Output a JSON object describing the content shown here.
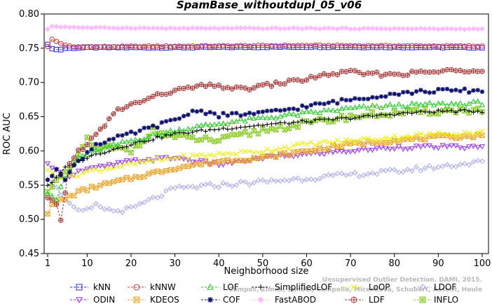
{
  "chart_data": {
    "type": "line",
    "title": "SpamBase_withoutdupl_05_v06",
    "xlabel": "Neighborhood size",
    "ylabel": "ROC AUC",
    "xlim": [
      1,
      100
    ],
    "ylim": [
      0.45,
      0.8
    ],
    "x_ticks": [
      "1",
      "10",
      "20",
      "30",
      "40",
      "50",
      "60",
      "70",
      "80",
      "90",
      "100"
    ],
    "y_ticks": [
      "0.45",
      "0.50",
      "0.55",
      "0.60",
      "0.65",
      "0.70",
      "0.75",
      "0.80"
    ],
    "grid": false,
    "legend_position": "bottom",
    "watermark": [
      "Campos, Zimek, Sander, Campello, Micenkova, Schubert, Assent, Houle",
      "Unsupervised Outlier Detection. DAMI, 2015."
    ],
    "series": [
      {
        "name": "kNN",
        "color": "#2323ff",
        "marker": "square",
        "keypoints": [
          [
            1,
            0.755
          ],
          [
            2,
            0.75
          ],
          [
            3,
            0.748
          ],
          [
            4,
            0.748
          ],
          [
            5,
            0.75
          ],
          [
            10,
            0.751
          ],
          [
            30,
            0.751
          ],
          [
            60,
            0.752
          ],
          [
            100,
            0.751
          ]
        ]
      },
      {
        "name": "kNNW",
        "color": "#e03030",
        "marker": "circle",
        "keypoints": [
          [
            1,
            0.752
          ],
          [
            2,
            0.763
          ],
          [
            3,
            0.76
          ],
          [
            4,
            0.757
          ],
          [
            5,
            0.754
          ],
          [
            7,
            0.752
          ],
          [
            10,
            0.752
          ],
          [
            30,
            0.753
          ],
          [
            60,
            0.754
          ],
          [
            100,
            0.753
          ]
        ]
      },
      {
        "name": "LOF",
        "color": "#22cc22",
        "marker": "triangle-up",
        "keypoints": [
          [
            1,
            0.54
          ],
          [
            3,
            0.53
          ],
          [
            5,
            0.56
          ],
          [
            8,
            0.59
          ],
          [
            12,
            0.6
          ],
          [
            20,
            0.615
          ],
          [
            30,
            0.63
          ],
          [
            40,
            0.64
          ],
          [
            50,
            0.648
          ],
          [
            60,
            0.655
          ],
          [
            70,
            0.662
          ],
          [
            80,
            0.666
          ],
          [
            90,
            0.668
          ],
          [
            100,
            0.67
          ]
        ]
      },
      {
        "name": "SimplifiedLOF",
        "color": "#000000",
        "marker": "plus",
        "keypoints": [
          [
            1,
            0.55
          ],
          [
            3,
            0.56
          ],
          [
            5,
            0.575
          ],
          [
            8,
            0.585
          ],
          [
            12,
            0.595
          ],
          [
            20,
            0.61
          ],
          [
            30,
            0.625
          ],
          [
            40,
            0.632
          ],
          [
            50,
            0.638
          ],
          [
            60,
            0.643
          ],
          [
            70,
            0.648
          ],
          [
            80,
            0.654
          ],
          [
            90,
            0.658
          ],
          [
            100,
            0.658
          ]
        ]
      },
      {
        "name": "LoOP",
        "color": "#eeee00",
        "marker": "x",
        "keypoints": [
          [
            1,
            0.57
          ],
          [
            3,
            0.565
          ],
          [
            5,
            0.56
          ],
          [
            10,
            0.57
          ],
          [
            20,
            0.58
          ],
          [
            30,
            0.59
          ],
          [
            40,
            0.595
          ],
          [
            50,
            0.6
          ],
          [
            60,
            0.61
          ],
          [
            70,
            0.615
          ],
          [
            80,
            0.62
          ],
          [
            90,
            0.625
          ],
          [
            100,
            0.627
          ]
        ]
      },
      {
        "name": "LDOF",
        "color": "#aaaaee",
        "marker": "diamond",
        "keypoints": [
          [
            1,
            0.56
          ],
          [
            3,
            0.545
          ],
          [
            5,
            0.53
          ],
          [
            7,
            0.515
          ],
          [
            9,
            0.51
          ],
          [
            12,
            0.52
          ],
          [
            16,
            0.512
          ],
          [
            20,
            0.515
          ],
          [
            25,
            0.53
          ],
          [
            30,
            0.545
          ],
          [
            40,
            0.55
          ],
          [
            50,
            0.555
          ],
          [
            60,
            0.56
          ],
          [
            70,
            0.565
          ],
          [
            80,
            0.57
          ],
          [
            90,
            0.577
          ],
          [
            100,
            0.584
          ]
        ]
      },
      {
        "name": "ODIN",
        "color": "#9933ee",
        "marker": "triangle-down",
        "keypoints": [
          [
            1,
            0.58
          ],
          [
            3,
            0.575
          ],
          [
            5,
            0.56
          ],
          [
            8,
            0.57
          ],
          [
            12,
            0.575
          ],
          [
            20,
            0.585
          ],
          [
            30,
            0.59
          ],
          [
            40,
            0.58
          ],
          [
            50,
            0.59
          ],
          [
            60,
            0.595
          ],
          [
            70,
            0.6
          ],
          [
            80,
            0.605
          ],
          [
            90,
            0.606
          ],
          [
            100,
            0.605
          ]
        ]
      },
      {
        "name": "KDEOS",
        "color": "#f0a020",
        "marker": "boxed-x",
        "keypoints": [
          [
            1,
            0.51
          ],
          [
            2,
            0.52
          ],
          [
            3,
            0.525
          ],
          [
            5,
            0.53
          ],
          [
            8,
            0.54
          ],
          [
            12,
            0.548
          ],
          [
            20,
            0.56
          ],
          [
            30,
            0.575
          ],
          [
            40,
            0.585
          ],
          [
            50,
            0.59
          ],
          [
            60,
            0.6
          ],
          [
            70,
            0.61
          ],
          [
            80,
            0.615
          ],
          [
            90,
            0.62
          ],
          [
            100,
            0.622
          ]
        ]
      },
      {
        "name": "COF",
        "color": "#101070",
        "marker": "star",
        "keypoints": [
          [
            1,
            0.555
          ],
          [
            3,
            0.575
          ],
          [
            5,
            0.56
          ],
          [
            8,
            0.585
          ],
          [
            12,
            0.61
          ],
          [
            20,
            0.625
          ],
          [
            30,
            0.645
          ],
          [
            35,
            0.66
          ],
          [
            40,
            0.652
          ],
          [
            50,
            0.655
          ],
          [
            60,
            0.665
          ],
          [
            70,
            0.675
          ],
          [
            80,
            0.684
          ],
          [
            90,
            0.688
          ],
          [
            100,
            0.688
          ]
        ]
      },
      {
        "name": "FastABOD",
        "color": "#ffbbff",
        "marker": "diamond-filled",
        "keypoints": [
          [
            1,
            0.778
          ],
          [
            2,
            0.782
          ],
          [
            5,
            0.781
          ],
          [
            10,
            0.78
          ],
          [
            30,
            0.779
          ],
          [
            60,
            0.779
          ],
          [
            100,
            0.778
          ]
        ]
      },
      {
        "name": "LDF",
        "color": "#aa3333",
        "marker": "circle-plus",
        "keypoints": [
          [
            1,
            0.53
          ],
          [
            3,
            0.52
          ],
          [
            4,
            0.5
          ],
          [
            6,
            0.58
          ],
          [
            8,
            0.6
          ],
          [
            10,
            0.61
          ],
          [
            13,
            0.63
          ],
          [
            17,
            0.66
          ],
          [
            22,
            0.672
          ],
          [
            28,
            0.685
          ],
          [
            35,
            0.694
          ],
          [
            40,
            0.695
          ],
          [
            45,
            0.69
          ],
          [
            50,
            0.695
          ],
          [
            55,
            0.7
          ],
          [
            60,
            0.705
          ],
          [
            65,
            0.712
          ],
          [
            70,
            0.715
          ],
          [
            75,
            0.712
          ],
          [
            80,
            0.712
          ],
          [
            90,
            0.716
          ],
          [
            100,
            0.719
          ]
        ]
      },
      {
        "name": "INFLO",
        "color": "#88cc22",
        "marker": "boxed-star",
        "keypoints": [
          [
            1,
            0.545
          ],
          [
            3,
            0.555
          ],
          [
            5,
            0.565
          ],
          [
            8,
            0.59
          ],
          [
            10,
            0.62
          ],
          [
            12,
            0.6
          ],
          [
            15,
            0.605
          ],
          [
            20,
            0.6
          ],
          [
            25,
            0.63
          ],
          [
            30,
            0.62
          ],
          [
            40,
            0.615
          ],
          [
            50,
            0.63
          ],
          [
            60,
            0.64
          ],
          [
            70,
            0.65
          ],
          [
            80,
            0.655
          ],
          [
            90,
            0.658
          ],
          [
            100,
            0.66
          ]
        ]
      }
    ]
  }
}
